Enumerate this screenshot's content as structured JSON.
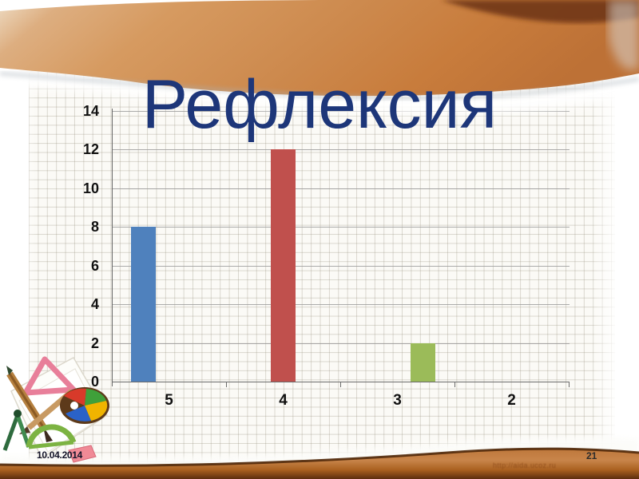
{
  "slide": {
    "title": "Рефлексия",
    "footer": {
      "date": "10.04.2014",
      "page_number": "21",
      "watermark": "http://aida.ucoz.ru"
    }
  },
  "icons": {
    "bottom_left_clipart": "drawing-tools-clipart"
  },
  "colors": {
    "title_text": "#1d3679",
    "band_orange": "#cd8a4e",
    "band_dark_brown": "#6e3512",
    "gridline": "#9c9c9c",
    "axis": "#6b6b6b",
    "bar_blue": "#4F81BD",
    "bar_red": "#C0504D",
    "bar_green": "#9BBB59"
  },
  "chart_data": {
    "type": "bar",
    "title": "",
    "xlabel": "",
    "ylabel": "",
    "categories": [
      "5",
      "4",
      "3",
      "2"
    ],
    "series": [
      {
        "name": "blue",
        "color": "#4F81BD",
        "values": [
          8,
          0,
          0,
          0
        ]
      },
      {
        "name": "red",
        "color": "#C0504D",
        "values": [
          0,
          12,
          0,
          0
        ]
      },
      {
        "name": "green",
        "color": "#9BBB59",
        "values": [
          0,
          0,
          2,
          0
        ]
      }
    ],
    "ylim": [
      0,
      14
    ],
    "ytick_step": 2,
    "grid": true,
    "legend": "none",
    "background": "graph-paper"
  }
}
